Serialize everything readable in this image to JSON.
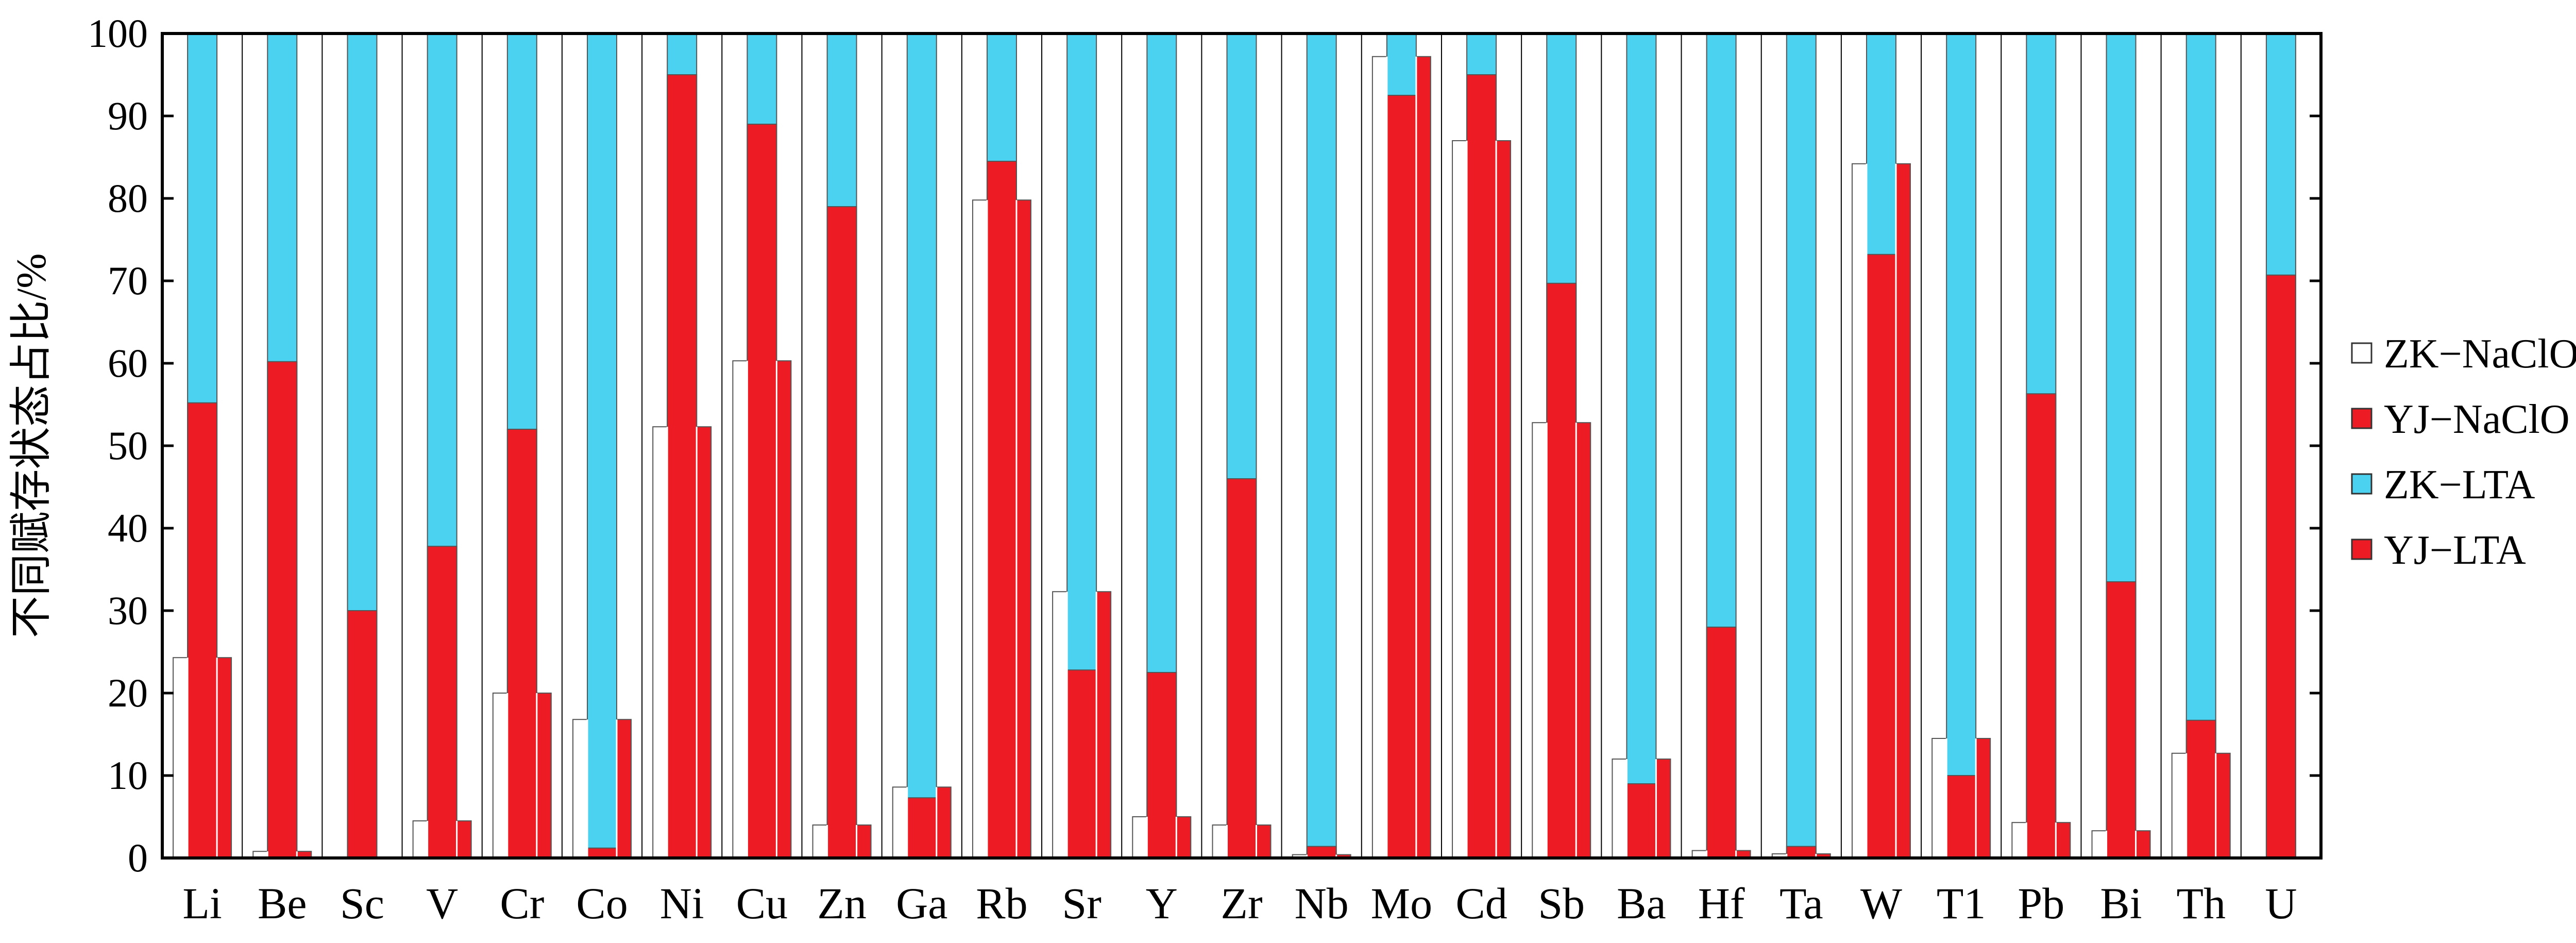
{
  "chart_data": {
    "type": "bar",
    "ylabel": "不同赋存状态占比/%",
    "ylim": [
      0,
      100
    ],
    "yticks": [
      0,
      10,
      20,
      30,
      40,
      50,
      60,
      70,
      80,
      90,
      100
    ],
    "legend_position": "right",
    "categories": [
      "Li",
      "Be",
      "Sc",
      "V",
      "Cr",
      "Co",
      "Ni",
      "Cu",
      "Zn",
      "Ga",
      "Rb",
      "Sr",
      "Y",
      "Zr",
      "Nb",
      "Mo",
      "Cd",
      "Sb",
      "Ba",
      "Hf",
      "Ta",
      "W",
      "T1",
      "Pb",
      "Bi",
      "Th",
      "U"
    ],
    "series": [
      {
        "name": "ZK−NaClO",
        "color": "#ffffff",
        "values": [
          24.3,
          0.8,
          0,
          4.5,
          20,
          16.8,
          52.3,
          60.3,
          4,
          8.6,
          79.8,
          32.3,
          5,
          4,
          0.4,
          97.2,
          87,
          52.8,
          12,
          0.9,
          0.5,
          84.2,
          14.5,
          4.3,
          3.3,
          12.7,
          0
        ]
      },
      {
        "name": "YJ−NaClO",
        "color": "#ed1c24",
        "values": [
          55.2,
          60.2,
          30,
          37.8,
          52,
          1.2,
          95,
          89,
          79,
          7.3,
          84.5,
          22.8,
          22.5,
          46,
          1.4,
          92.5,
          95,
          69.7,
          9,
          28,
          1.4,
          73.2,
          10,
          56.3,
          33.5,
          16.7,
          70.7
        ]
      },
      {
        "name": "ZK−LTA",
        "color": "#4ad2f0",
        "values": [
          100,
          100,
          100,
          100,
          100,
          100,
          100,
          100,
          100,
          100,
          100,
          100,
          100,
          100,
          100,
          100,
          100,
          100,
          100,
          100,
          100,
          100,
          100,
          100,
          100,
          100,
          100
        ]
      },
      {
        "name": "YJ−LTA",
        "color": "#ed1c24",
        "values": [
          24.3,
          0.8,
          0,
          4.5,
          20,
          16.8,
          52.3,
          60.3,
          4,
          8.6,
          79.8,
          32.3,
          5,
          4,
          0.4,
          97.2,
          87,
          52.8,
          12,
          0.9,
          0.5,
          84.2,
          14.5,
          4.3,
          3.3,
          12.7,
          0
        ]
      }
    ]
  }
}
